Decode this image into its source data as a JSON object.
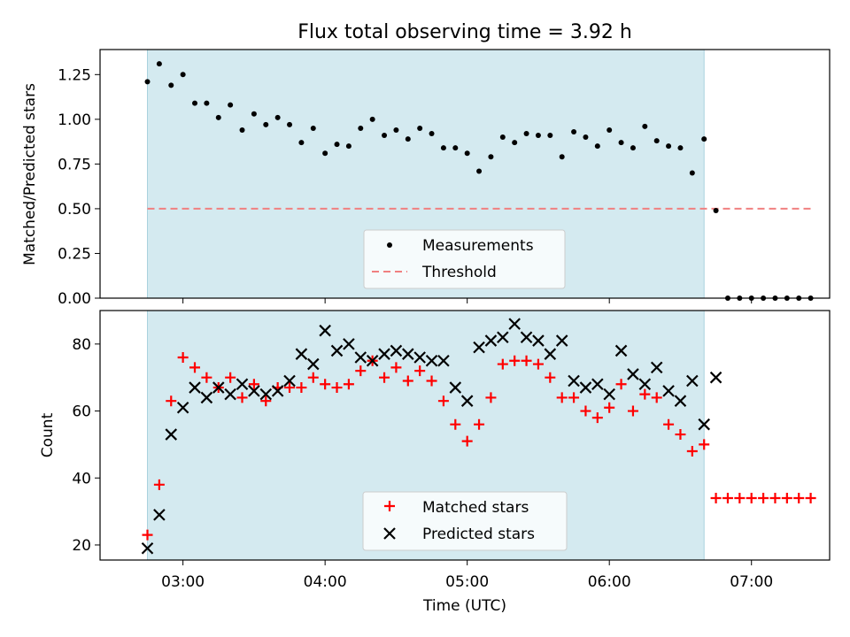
{
  "chart_data": [
    {
      "type": "scatter",
      "title": "Flux total observing time = 3.92 h",
      "ylabel": "Matched/Predicted stars",
      "xlabel": "",
      "xlim": [
        "02:25",
        "07:33"
      ],
      "ylim": [
        0,
        1.39
      ],
      "yticks": [
        "0.00",
        "0.25",
        "0.50",
        "0.75",
        "1.00",
        "1.25"
      ],
      "shaded_interval": [
        "02:45",
        "06:40"
      ],
      "threshold": {
        "value": 0.5,
        "x": [
          "02:45",
          "07:25"
        ]
      },
      "legend": [
        "Measurements",
        "Threshold"
      ],
      "series": [
        {
          "name": "Measurements",
          "x": [
            "02:45",
            "02:50",
            "02:55",
            "03:00",
            "03:05",
            "03:10",
            "03:15",
            "03:20",
            "03:25",
            "03:30",
            "03:35",
            "03:40",
            "03:45",
            "03:50",
            "03:55",
            "04:00",
            "04:05",
            "04:10",
            "04:15",
            "04:20",
            "04:25",
            "04:30",
            "04:35",
            "04:40",
            "04:45",
            "04:50",
            "04:55",
            "05:00",
            "05:05",
            "05:10",
            "05:15",
            "05:20",
            "05:25",
            "05:30",
            "05:35",
            "05:40",
            "05:45",
            "05:50",
            "05:55",
            "06:00",
            "06:05",
            "06:10",
            "06:15",
            "06:20",
            "06:25",
            "06:30",
            "06:35",
            "06:40",
            "06:45",
            "06:50",
            "06:55",
            "07:00",
            "07:05",
            "07:10",
            "07:15",
            "07:20",
            "07:25"
          ],
          "y": [
            1.21,
            1.31,
            1.19,
            1.25,
            1.09,
            1.09,
            1.01,
            1.08,
            0.94,
            1.03,
            0.97,
            1.01,
            0.97,
            0.87,
            0.95,
            0.81,
            0.86,
            0.85,
            0.95,
            1.0,
            0.91,
            0.94,
            0.89,
            0.95,
            0.92,
            0.84,
            0.84,
            0.81,
            0.71,
            0.79,
            0.9,
            0.87,
            0.92,
            0.91,
            0.91,
            0.79,
            0.93,
            0.9,
            0.85,
            0.94,
            0.87,
            0.84,
            0.96,
            0.88,
            0.85,
            0.84,
            0.7,
            0.89,
            0.49,
            0.0,
            0.0,
            0.0,
            0.0,
            0.0,
            0.0,
            0.0,
            0.0
          ]
        },
        {
          "name": "Threshold",
          "style": "dashed"
        }
      ]
    },
    {
      "type": "scatter",
      "title": "",
      "xlabel": "Time (UTC)",
      "ylabel": "Count",
      "xlim": [
        "02:25",
        "07:33"
      ],
      "xticks": [
        "03:00",
        "04:00",
        "05:00",
        "06:00",
        "07:00"
      ],
      "ylim": [
        15.5,
        90
      ],
      "yticks": [
        "20",
        "40",
        "60",
        "80"
      ],
      "shaded_interval": [
        "02:45",
        "06:40"
      ],
      "legend": [
        "Matched stars",
        "Predicted stars"
      ],
      "series": [
        {
          "name": "Matched stars",
          "marker": "plus",
          "x": [
            "02:45",
            "02:50",
            "02:55",
            "03:00",
            "03:05",
            "03:10",
            "03:15",
            "03:20",
            "03:25",
            "03:30",
            "03:35",
            "03:40",
            "03:45",
            "03:50",
            "03:55",
            "04:00",
            "04:05",
            "04:10",
            "04:15",
            "04:20",
            "04:25",
            "04:30",
            "04:35",
            "04:40",
            "04:45",
            "04:50",
            "04:55",
            "05:00",
            "05:05",
            "05:10",
            "05:15",
            "05:20",
            "05:25",
            "05:30",
            "05:35",
            "05:40",
            "05:45",
            "05:50",
            "05:55",
            "06:00",
            "06:05",
            "06:10",
            "06:15",
            "06:20",
            "06:25",
            "06:30",
            "06:35",
            "06:40",
            "06:45",
            "06:50",
            "06:55",
            "07:00",
            "07:05",
            "07:10",
            "07:15",
            "07:20",
            "07:25"
          ],
          "y": [
            23,
            38,
            63,
            76,
            73,
            70,
            67,
            70,
            64,
            68,
            63,
            67,
            67,
            67,
            70,
            68,
            67,
            68,
            72,
            75,
            70,
            73,
            69,
            72,
            69,
            63,
            56,
            51,
            56,
            64,
            74,
            75,
            75,
            74,
            70,
            64,
            64,
            60,
            58,
            61,
            68,
            60,
            65,
            64,
            56,
            53,
            48,
            50,
            34,
            34,
            34,
            34,
            34,
            34,
            34,
            34,
            34
          ]
        },
        {
          "name": "Predicted stars",
          "marker": "x",
          "x": [
            "02:45",
            "02:50",
            "02:55",
            "03:00",
            "03:05",
            "03:10",
            "03:15",
            "03:20",
            "03:25",
            "03:30",
            "03:35",
            "03:40",
            "03:45",
            "03:50",
            "03:55",
            "04:00",
            "04:05",
            "04:10",
            "04:15",
            "04:20",
            "04:25",
            "04:30",
            "04:35",
            "04:40",
            "04:45",
            "04:50",
            "04:55",
            "05:00",
            "05:05",
            "05:10",
            "05:15",
            "05:20",
            "05:25",
            "05:30",
            "05:35",
            "05:40",
            "05:45",
            "05:50",
            "05:55",
            "06:00",
            "06:05",
            "06:10",
            "06:15",
            "06:20",
            "06:25",
            "06:30",
            "06:35",
            "06:40",
            "06:45"
          ],
          "y": [
            19,
            29,
            53,
            61,
            67,
            64,
            67,
            65,
            68,
            66,
            65,
            66,
            69,
            77,
            74,
            84,
            78,
            80,
            76,
            75,
            77,
            78,
            77,
            76,
            75,
            75,
            67,
            63,
            79,
            81,
            82,
            86,
            82,
            81,
            77,
            81,
            69,
            67,
            68,
            65,
            78,
            71,
            68,
            73,
            66,
            63,
            69,
            56,
            70
          ]
        }
      ]
    }
  ],
  "colors": {
    "shade": "#d4eaf0",
    "shade_edge": "#a9d2de",
    "threshold": "#f08080",
    "measurement": "#000000",
    "matched": "#ff0000",
    "predicted": "#000000"
  }
}
